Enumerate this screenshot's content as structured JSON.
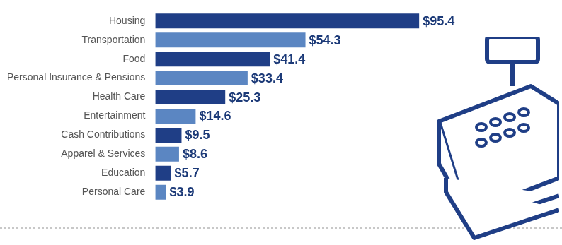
{
  "chart_data": {
    "type": "bar",
    "orientation": "horizontal",
    "categories": [
      "Housing",
      "Transportation",
      "Food",
      "Personal Insurance & Pensions",
      "Health Care",
      "Entertainment",
      "Cash Contributions",
      "Apparel & Services",
      "Education",
      "Personal Care"
    ],
    "values": [
      95.4,
      54.3,
      41.4,
      33.4,
      25.3,
      14.6,
      9.5,
      8.6,
      5.7,
      3.9
    ],
    "value_labels": [
      "$95.4",
      "$54.3",
      "$41.4",
      "$33.4",
      "$25.3",
      "$14.6",
      "$9.5",
      "$8.6",
      "$5.7",
      "$3.9"
    ],
    "colors": [
      "#1f3e86",
      "#5b86c2",
      "#1f3e86",
      "#5b86c2",
      "#1f3e86",
      "#5b86c2",
      "#1f3e86",
      "#5b86c2",
      "#1f3e86",
      "#5b86c2"
    ],
    "data_labels": true,
    "tick_labels": "y",
    "grid": false
  }
}
